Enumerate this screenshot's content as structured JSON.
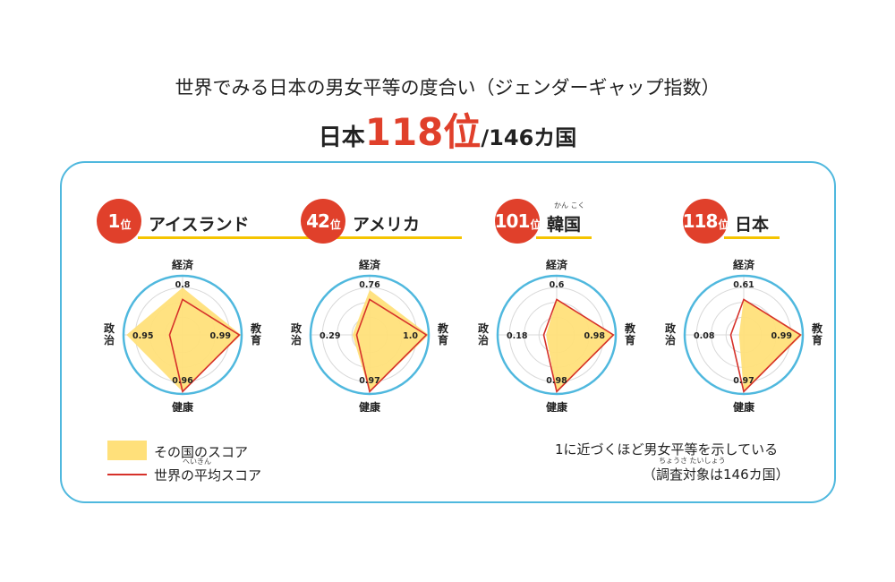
{
  "title": "世界でみる日本の男女平等の度合い（ジェンダーギャップ指数）",
  "headline": {
    "prefix": "日本",
    "rank": "118位",
    "suffix": "/146カ国"
  },
  "colors": {
    "accent_red": "#e0402b",
    "fill_yellow": "#ffe07a",
    "frame_blue": "#4fb8de",
    "underline": "#f5c400"
  },
  "chart_data": [
    {
      "type": "radar",
      "rank_number": "1",
      "rank_suffix": "位",
      "country": "アイスランド",
      "ruby": "",
      "axes": [
        "経済",
        "教育",
        "健康",
        "政治"
      ],
      "values": [
        0.8,
        0.99,
        0.96,
        0.95
      ],
      "labels": [
        "0.8",
        "0.99",
        "0.96",
        "0.95"
      ],
      "range": [
        0,
        1
      ]
    },
    {
      "type": "radar",
      "rank_number": "42",
      "rank_suffix": "位",
      "country": "アメリカ",
      "ruby": "",
      "axes": [
        "経済",
        "教育",
        "健康",
        "政治"
      ],
      "values": [
        0.76,
        1.0,
        0.97,
        0.29
      ],
      "labels": [
        "0.76",
        "1.0",
        "0.97",
        "0.29"
      ],
      "range": [
        0,
        1
      ]
    },
    {
      "type": "radar",
      "rank_number": "101",
      "rank_suffix": "位",
      "country": "韓国",
      "ruby": "かん こく",
      "axes": [
        "経済",
        "教育",
        "健康",
        "政治"
      ],
      "values": [
        0.6,
        0.98,
        0.98,
        0.18
      ],
      "labels": [
        "0.6",
        "0.98",
        "0.98",
        "0.18"
      ],
      "range": [
        0,
        1
      ]
    },
    {
      "type": "radar",
      "rank_number": "118",
      "rank_suffix": "位",
      "country": "日本",
      "ruby": "",
      "axes": [
        "経済",
        "教育",
        "健康",
        "政治"
      ],
      "values": [
        0.61,
        0.99,
        0.97,
        0.08
      ],
      "labels": [
        "0.61",
        "0.99",
        "0.97",
        "0.08"
      ],
      "range": [
        0,
        1
      ]
    }
  ],
  "world_average": {
    "values": [
      0.6,
      0.96,
      0.96,
      0.22
    ]
  },
  "legend": {
    "fill_label": "その国のスコア",
    "line_label": "世界の平均スコア",
    "line_ruby": "へいきん"
  },
  "note": {
    "line1": "1に近づくほど男女平等を示している",
    "line2": "（調査対象は146カ国）",
    "line2_ruby": "ちょうさ たいしょう"
  }
}
